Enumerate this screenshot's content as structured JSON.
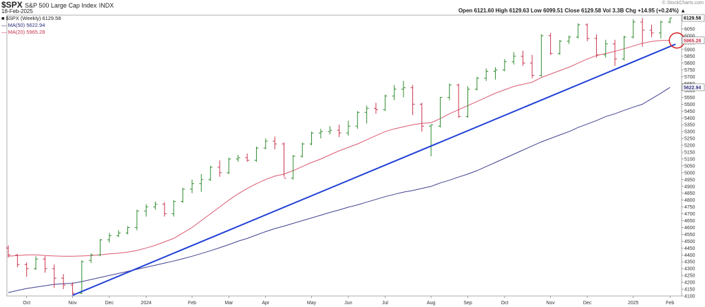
{
  "header": {
    "symbol": "$SPX",
    "name": "S&P 500 Large Cap Index",
    "exchange": "INDX",
    "date": "18-Feb-2025",
    "watermark": "© StockCharts.com",
    "ohlc": "Open 6121.60  High 6129.63  Low 6099.51  Close 6129.58  Vol 3.3B  Chg +14.95 (+0.24%) ▲"
  },
  "legend": [
    {
      "text": "■ $SPX (Weekly) 6129.58",
      "color": "#1a1a1a"
    },
    {
      "text": "— MA(50) 5622.94",
      "color": "#2b2b7a"
    },
    {
      "text": "— MA(20) 5965.28",
      "color": "#c8324b"
    }
  ],
  "last_labels": {
    "price": "6129.58",
    "ma20": "5965.28",
    "ma50": "5622.94"
  },
  "colors": {
    "up": "#2e8b2e",
    "down": "#c8324b",
    "ma20": "#d9576e",
    "ma50": "#3f3f8f",
    "trendline": "#1f3fd6",
    "highlight": "#d42020"
  },
  "chart_data": {
    "type": "ohlc",
    "title": "$SPX S&P 500 Large Cap Index INDX",
    "timeframe": "Weekly",
    "ylim": [
      4100,
      6150
    ],
    "y_ticks": [
      4100,
      4150,
      4200,
      4250,
      4300,
      4350,
      4400,
      4450,
      4500,
      4550,
      4600,
      4650,
      4700,
      4750,
      4800,
      4850,
      4900,
      4950,
      5000,
      5050,
      5100,
      5150,
      5200,
      5250,
      5300,
      5350,
      5400,
      5450,
      5500,
      5550,
      5600,
      5650,
      5700,
      5750,
      5800,
      5850,
      5900,
      5950,
      6000,
      6050
    ],
    "x_labels": [
      {
        "label": "Oct",
        "week": 2
      },
      {
        "label": "Nov",
        "week": 7
      },
      {
        "label": "Dec",
        "week": 11
      },
      {
        "label": "2024",
        "week": 15
      },
      {
        "label": "Feb",
        "week": 20
      },
      {
        "label": "Mar",
        "week": 24
      },
      {
        "label": "Apr",
        "week": 28
      },
      {
        "label": "May",
        "week": 33
      },
      {
        "label": "Jun",
        "week": 37
      },
      {
        "label": "Jul",
        "week": 41
      },
      {
        "label": "Aug",
        "week": 46
      },
      {
        "label": "Sep",
        "week": 50
      },
      {
        "label": "Oct",
        "week": 54
      },
      {
        "label": "Nov",
        "week": 59
      },
      {
        "label": "Dec",
        "week": 63
      },
      {
        "label": "2025",
        "week": 68
      },
      {
        "label": "Feb",
        "week": 72
      }
    ],
    "bars": [
      [
        4450,
        4470,
        4380,
        4400
      ],
      [
        4400,
        4405,
        4310,
        4330
      ],
      [
        4330,
        4345,
        4240,
        4300
      ],
      [
        4300,
        4390,
        4290,
        4370
      ],
      [
        4370,
        4390,
        4270,
        4300
      ],
      [
        4300,
        4330,
        4160,
        4230
      ],
      [
        4230,
        4260,
        4150,
        4180
      ],
      [
        4180,
        4200,
        4105,
        4120
      ],
      [
        4120,
        4360,
        4115,
        4350
      ],
      [
        4360,
        4410,
        4340,
        4400
      ],
      [
        4400,
        4515,
        4390,
        4510
      ],
      [
        4510,
        4560,
        4490,
        4540
      ],
      [
        4540,
        4580,
        4530,
        4560
      ],
      [
        4560,
        4610,
        4550,
        4600
      ],
      [
        4600,
        4730,
        4580,
        4720
      ],
      [
        4720,
        4770,
        4680,
        4750
      ],
      [
        4750,
        4790,
        4730,
        4770
      ],
      [
        4770,
        4785,
        4680,
        4700
      ],
      [
        4700,
        4800,
        4680,
        4790
      ],
      [
        4790,
        4890,
        4780,
        4880
      ],
      [
        4880,
        4950,
        4850,
        4920
      ],
      [
        4920,
        4990,
        4860,
        4950
      ],
      [
        4950,
        5050,
        4940,
        5040
      ],
      [
        5040,
        5090,
        4970,
        5000
      ],
      [
        5000,
        5110,
        4990,
        5100
      ],
      [
        5100,
        5130,
        5080,
        5110
      ],
      [
        5110,
        5140,
        5080,
        5090
      ],
      [
        5090,
        5190,
        5080,
        5180
      ],
      [
        5180,
        5250,
        5170,
        5230
      ],
      [
        5230,
        5264,
        5170,
        5210
      ],
      [
        5210,
        5220,
        4970,
        4960
      ],
      [
        4960,
        5130,
        4950,
        5120
      ],
      [
        5120,
        5220,
        5110,
        5210
      ],
      [
        5210,
        5300,
        5200,
        5290
      ],
      [
        5290,
        5320,
        5250,
        5300
      ],
      [
        5300,
        5340,
        5280,
        5310
      ],
      [
        5310,
        5350,
        5260,
        5290
      ],
      [
        5290,
        5380,
        5270,
        5340
      ],
      [
        5340,
        5450,
        5320,
        5440
      ],
      [
        5440,
        5490,
        5360,
        5470
      ],
      [
        5470,
        5510,
        5430,
        5460
      ],
      [
        5460,
        5570,
        5450,
        5560
      ],
      [
        5560,
        5640,
        5530,
        5610
      ],
      [
        5610,
        5670,
        5550,
        5620
      ],
      [
        5620,
        5640,
        5420,
        5500
      ],
      [
        5500,
        5510,
        5300,
        5340
      ],
      [
        5340,
        5350,
        5120,
        5350
      ],
      [
        5340,
        5550,
        5330,
        5550
      ],
      [
        5550,
        5650,
        5530,
        5640
      ],
      [
        5640,
        5650,
        5400,
        5410
      ],
      [
        5410,
        5630,
        5400,
        5610
      ],
      [
        5610,
        5700,
        5600,
        5690
      ],
      [
        5690,
        5760,
        5670,
        5740
      ],
      [
        5740,
        5770,
        5680,
        5750
      ],
      [
        5750,
        5830,
        5740,
        5810
      ],
      [
        5810,
        5880,
        5790,
        5850
      ],
      [
        5850,
        5890,
        5780,
        5800
      ],
      [
        5800,
        5860,
        5690,
        5710
      ],
      [
        5710,
        6010,
        5700,
        6000
      ],
      [
        6000,
        6020,
        5860,
        5870
      ],
      [
        5870,
        5970,
        5860,
        5960
      ],
      [
        5960,
        6000,
        5940,
        5990
      ],
      [
        5990,
        6090,
        5980,
        6080
      ],
      [
        6080,
        6090,
        5960,
        5980
      ],
      [
        5980,
        6010,
        5840,
        5860
      ],
      [
        5860,
        5970,
        5840,
        5940
      ],
      [
        5940,
        5970,
        5780,
        5830
      ],
      [
        5830,
        6000,
        5820,
        5990
      ],
      [
        5990,
        6120,
        5980,
        6100
      ],
      [
        6100,
        6130,
        5920,
        6040
      ],
      [
        6040,
        6080,
        5990,
        6020
      ],
      [
        6020,
        6110,
        5980,
        6100
      ],
      [
        6100,
        6130,
        6090,
        6129.58
      ]
    ],
    "ma20": [
      4390,
      4395,
      4400,
      4400,
      4395,
      4392,
      4390,
      4390,
      4392,
      4395,
      4400,
      4408,
      4412,
      4420,
      4432,
      4450,
      4470,
      4495,
      4520,
      4560,
      4600,
      4650,
      4700,
      4750,
      4800,
      4845,
      4885,
      4920,
      4950,
      4975,
      4990,
      5015,
      5045,
      5075,
      5100,
      5130,
      5160,
      5185,
      5210,
      5240,
      5270,
      5300,
      5320,
      5335,
      5350,
      5360,
      5365,
      5395,
      5430,
      5460,
      5490,
      5520,
      5550,
      5580,
      5605,
      5630,
      5645,
      5660,
      5695,
      5720,
      5745,
      5770,
      5800,
      5830,
      5855,
      5870,
      5885,
      5905,
      5925,
      5945,
      5958,
      5965,
      5965.28
    ],
    "ma50": [
      4125,
      4140,
      4155,
      4165,
      4175,
      4185,
      4190,
      4193,
      4205,
      4220,
      4235,
      4250,
      4265,
      4280,
      4295,
      4310,
      4325,
      4340,
      4355,
      4372,
      4390,
      4410,
      4430,
      4452,
      4475,
      4500,
      4520,
      4545,
      4570,
      4592,
      4610,
      4630,
      4650,
      4670,
      4690,
      4710,
      4728,
      4748,
      4765,
      4785,
      4805,
      4825,
      4842,
      4858,
      4870,
      4885,
      4900,
      4925,
      4945,
      4968,
      4990,
      5015,
      5045,
      5075,
      5105,
      5135,
      5165,
      5195,
      5225,
      5250,
      5275,
      5300,
      5330,
      5355,
      5380,
      5410,
      5430,
      5455,
      5478,
      5500,
      5540,
      5580,
      5622.94
    ],
    "trendline": {
      "from": {
        "week": 7,
        "value": 4105
      },
      "to": {
        "week": 72.6,
        "value": 5938
      }
    },
    "highlight": {
      "shape": "circle",
      "at": {
        "week": 72.6,
        "value": 5965.28
      }
    }
  }
}
